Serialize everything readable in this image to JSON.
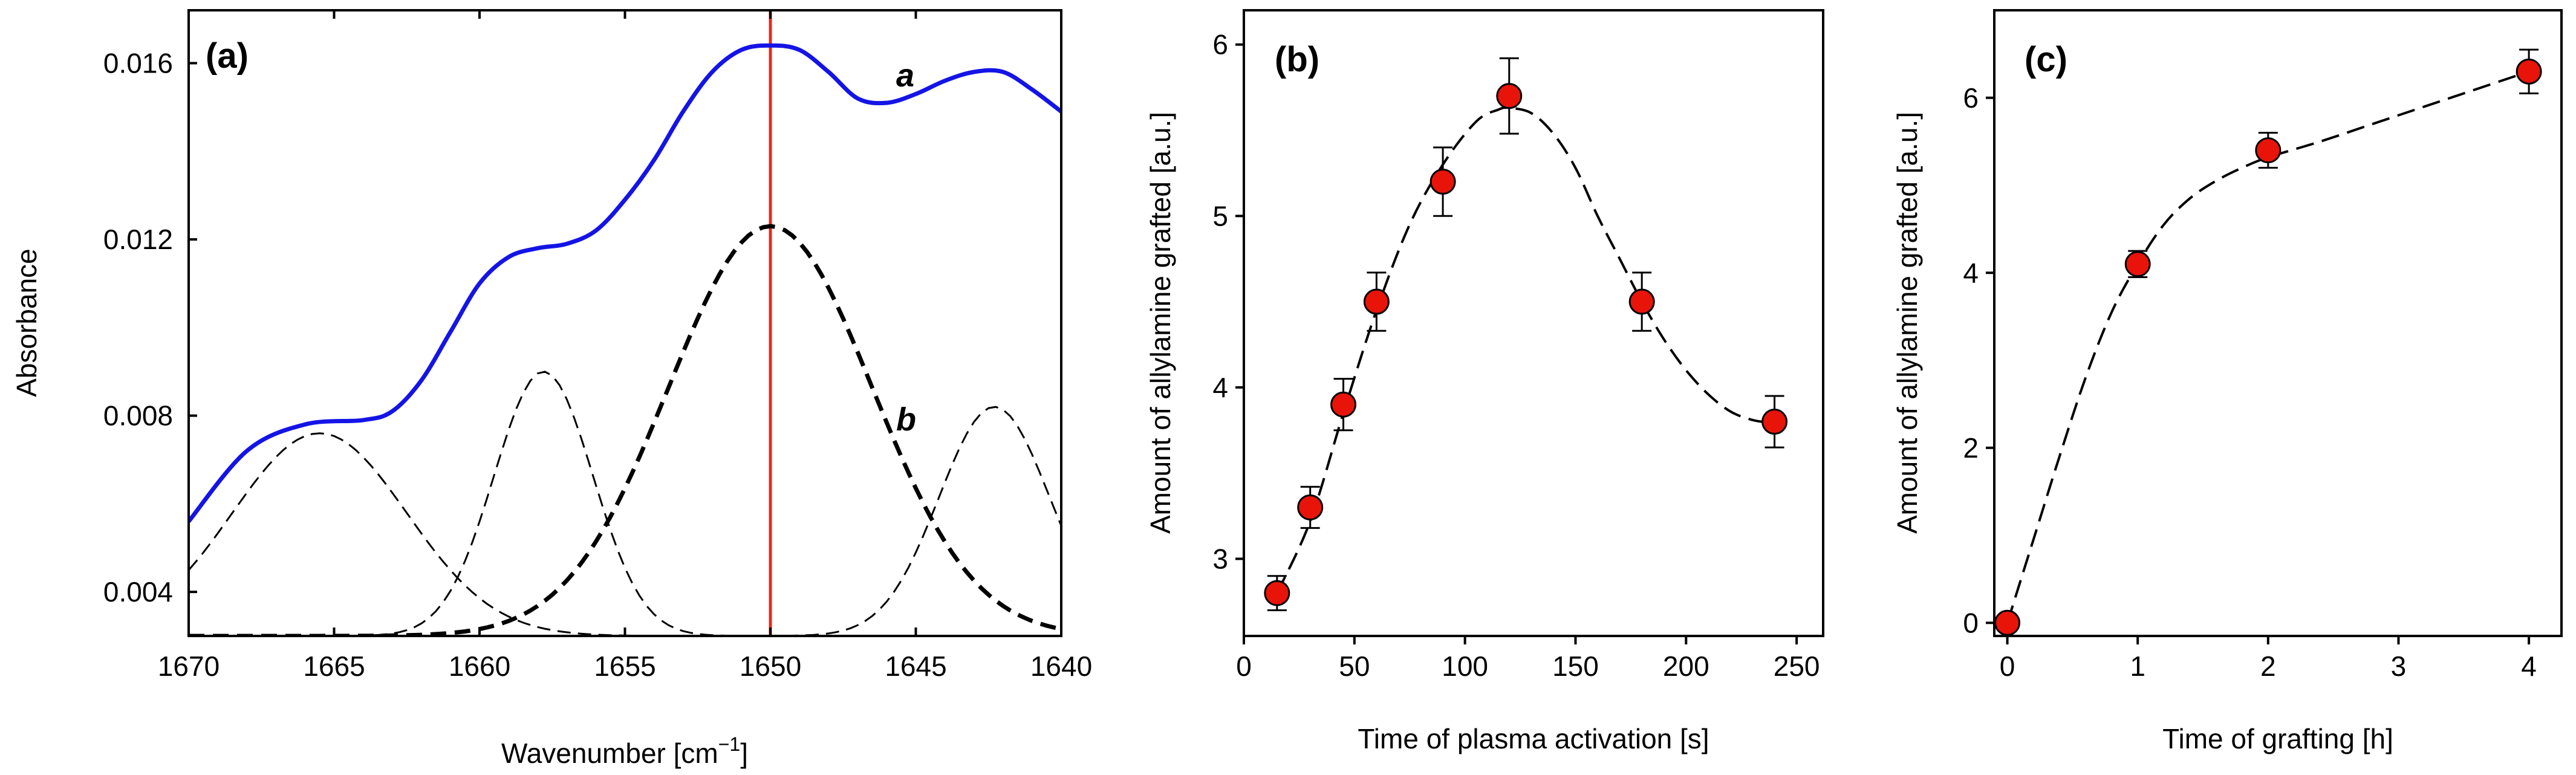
{
  "chart_data": [
    {
      "type": "line",
      "panel_label": "(a)",
      "xlabel": "Wavenumber [cm",
      "xlabel_sup": "−1",
      "xlabel_end": "]",
      "ylabel": "Absorbance",
      "xlim": [
        1670,
        1640
      ],
      "ylim": [
        0.003,
        0.0172
      ],
      "xticks": [
        1670,
        1665,
        1660,
        1655,
        1650,
        1645,
        1640
      ],
      "xtick_labels": [
        "1670",
        "1665",
        "1660",
        "1655",
        "1650",
        "1645",
        "1640"
      ],
      "yticks": [
        0.004,
        0.008,
        0.012,
        0.016
      ],
      "ytick_labels": [
        "0.004",
        "0.008",
        "0.012",
        "0.016"
      ],
      "vertical_marker": {
        "x": 1650,
        "color": "#e8281e"
      },
      "series": [
        {
          "name": "a",
          "label": "a",
          "color": "#1414e6",
          "style": "solid",
          "x": [
            1670,
            1668,
            1666,
            1664,
            1663,
            1662,
            1661,
            1660,
            1659,
            1658,
            1657,
            1656,
            1655,
            1654,
            1653,
            1652,
            1651,
            1650,
            1649,
            1648,
            1647,
            1646,
            1645,
            1644,
            1643,
            1642,
            1641,
            1640
          ],
          "values": [
            0.0056,
            0.0072,
            0.0078,
            0.0079,
            0.0081,
            0.0088,
            0.0099,
            0.011,
            0.0116,
            0.0118,
            0.0119,
            0.0122,
            0.0129,
            0.0138,
            0.0149,
            0.0158,
            0.0163,
            0.0164,
            0.0163,
            0.0158,
            0.0152,
            0.0151,
            0.0153,
            0.0156,
            0.0158,
            0.0158,
            0.0154,
            0.0149
          ]
        },
        {
          "name": "b",
          "label": "b",
          "color": "#000000",
          "style": "bold-dashed",
          "gaussian": {
            "center": 1650,
            "amplitude": 0.0093,
            "sigma": 3.5
          }
        },
        {
          "name": "component-1665",
          "color": "#000000",
          "style": "thin-dashed",
          "gaussian": {
            "center": 1665.5,
            "amplitude": 0.0046,
            "sigma": 3.0
          }
        },
        {
          "name": "component-1658",
          "color": "#000000",
          "style": "thin-dashed",
          "gaussian": {
            "center": 1657.8,
            "amplitude": 0.006,
            "sigma": 1.7
          }
        },
        {
          "name": "component-1642",
          "color": "#000000",
          "style": "thin-dashed",
          "gaussian": {
            "center": 1642.3,
            "amplitude": 0.0052,
            "sigma": 1.9
          }
        }
      ]
    },
    {
      "type": "scatter",
      "panel_label": "(b)",
      "xlabel": "Time of plasma activation [s]",
      "ylabel": "Amount of allylamine grafted [a.u.]",
      "xlim": [
        0,
        262
      ],
      "ylim": [
        2.55,
        6.2
      ],
      "xticks": [
        0,
        50,
        100,
        150,
        200,
        250
      ],
      "xtick_labels": [
        "0",
        "50",
        "100",
        "150",
        "200",
        "250"
      ],
      "yticks": [
        3,
        4,
        5,
        6
      ],
      "ytick_labels": [
        "3",
        "4",
        "5",
        "6"
      ],
      "points": {
        "x": [
          15,
          30,
          45,
          60,
          90,
          120,
          180,
          240
        ],
        "y": [
          2.8,
          3.3,
          3.9,
          4.5,
          5.2,
          5.7,
          4.5,
          3.8
        ],
        "err": [
          0.1,
          0.12,
          0.15,
          0.17,
          0.2,
          0.22,
          0.17,
          0.15
        ],
        "color": "#e8140a"
      },
      "fit_curve": {
        "style": "dashed",
        "x": [
          15,
          30,
          45,
          60,
          75,
          90,
          105,
          115,
          120,
          130,
          140,
          150,
          160,
          170,
          180,
          190,
          200,
          210,
          220,
          230,
          240
        ],
        "y": [
          2.8,
          3.22,
          3.85,
          4.45,
          4.95,
          5.3,
          5.55,
          5.62,
          5.63,
          5.6,
          5.48,
          5.28,
          5.0,
          4.75,
          4.5,
          4.28,
          4.1,
          3.96,
          3.86,
          3.81,
          3.79
        ]
      }
    },
    {
      "type": "scatter",
      "panel_label": "(c)",
      "xlabel": "Time of grafting [h]",
      "ylabel": "Amount of allylamine grafted [a.u.]",
      "xlim": [
        -0.1,
        4.25
      ],
      "ylim": [
        -0.15,
        7.0
      ],
      "xticks": [
        0,
        1,
        2,
        3,
        4
      ],
      "xtick_labels": [
        "0",
        "1",
        "2",
        "3",
        "4"
      ],
      "yticks": [
        0,
        2,
        4,
        6
      ],
      "ytick_labels": [
        "0",
        "2",
        "4",
        "6"
      ],
      "points": {
        "x": [
          0,
          1,
          2,
          4
        ],
        "y": [
          0,
          4.1,
          5.4,
          6.3
        ],
        "err": [
          0,
          0.15,
          0.2,
          0.25
        ],
        "color": "#e8140a"
      },
      "fit_curve": {
        "style": "dashed",
        "x": [
          0,
          0.2,
          0.4,
          0.6,
          0.8,
          1.0,
          1.2,
          1.4,
          1.6,
          1.8,
          2.0,
          2.4,
          2.8,
          3.2,
          3.6,
          4.0
        ],
        "y": [
          0,
          0.95,
          1.9,
          2.8,
          3.55,
          4.1,
          4.55,
          4.85,
          5.05,
          5.2,
          5.32,
          5.5,
          5.7,
          5.9,
          6.1,
          6.3
        ]
      }
    }
  ]
}
